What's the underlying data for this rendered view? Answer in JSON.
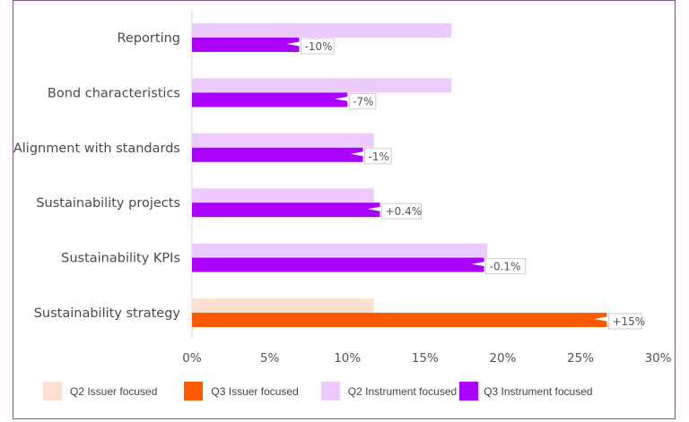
{
  "chart_data": {
    "type": "bar",
    "orientation": "horizontal",
    "title": "",
    "xlabel": "",
    "ylabel": "",
    "xlim": [
      0,
      30
    ],
    "x_ticks": [
      "0%",
      "5%",
      "10%",
      "15%",
      "20%",
      "25%",
      "30%"
    ],
    "x_tick_values": [
      0,
      5,
      10,
      15,
      20,
      25,
      30
    ],
    "grid": false,
    "legend_position": "bottom",
    "categories": [
      "Reporting",
      "Bond characteristics",
      "Alignment with standards",
      "Sustainability projects",
      "Sustainability KPIs",
      "Sustainability strategy"
    ],
    "rows": [
      {
        "category": "Reporting",
        "group": "instrument",
        "q2": 16.7,
        "q3": 6.9,
        "change_label": "-10%"
      },
      {
        "category": "Bond characteristics",
        "group": "instrument",
        "q2": 16.7,
        "q3": 10.0,
        "change_label": "-7%"
      },
      {
        "category": "Alignment with standards",
        "group": "instrument",
        "q2": 11.7,
        "q3": 11.0,
        "change_label": "-1%"
      },
      {
        "category": "Sustainability projects",
        "group": "instrument",
        "q2": 11.7,
        "q3": 12.1,
        "change_label": "+0.4%"
      },
      {
        "category": "Sustainability KPIs",
        "group": "instrument",
        "q2": 19.0,
        "q3": 18.8,
        "change_label": "-0.1%"
      },
      {
        "category": "Sustainability strategy",
        "group": "issuer",
        "q2": 11.7,
        "q3": 26.7,
        "change_label": "+15%"
      }
    ],
    "series": [
      {
        "name": "Q2 Issuer focused",
        "color": "#fde0cf"
      },
      {
        "name": "Q3 Issuer focused",
        "color": "#ff5a00"
      },
      {
        "name": "Q2 Instrument focused",
        "color": "#eccbfc"
      },
      {
        "name": "Q3 Instrument focused",
        "color": "#aa00ff"
      }
    ]
  },
  "legend": [
    {
      "label": "Q2 Issuer focused",
      "color": "#fde0cf"
    },
    {
      "label": "Q3 Issuer focused",
      "color": "#ff5a00"
    },
    {
      "label": "Q2 Instrument focused",
      "color": "#eccbfc"
    },
    {
      "label": "Q3 Instrument focused",
      "color": "#aa00ff"
    }
  ],
  "colors": {
    "frame": "#7a5c8a",
    "axis": "#e6e6e6",
    "label_border": "#cccccc"
  }
}
